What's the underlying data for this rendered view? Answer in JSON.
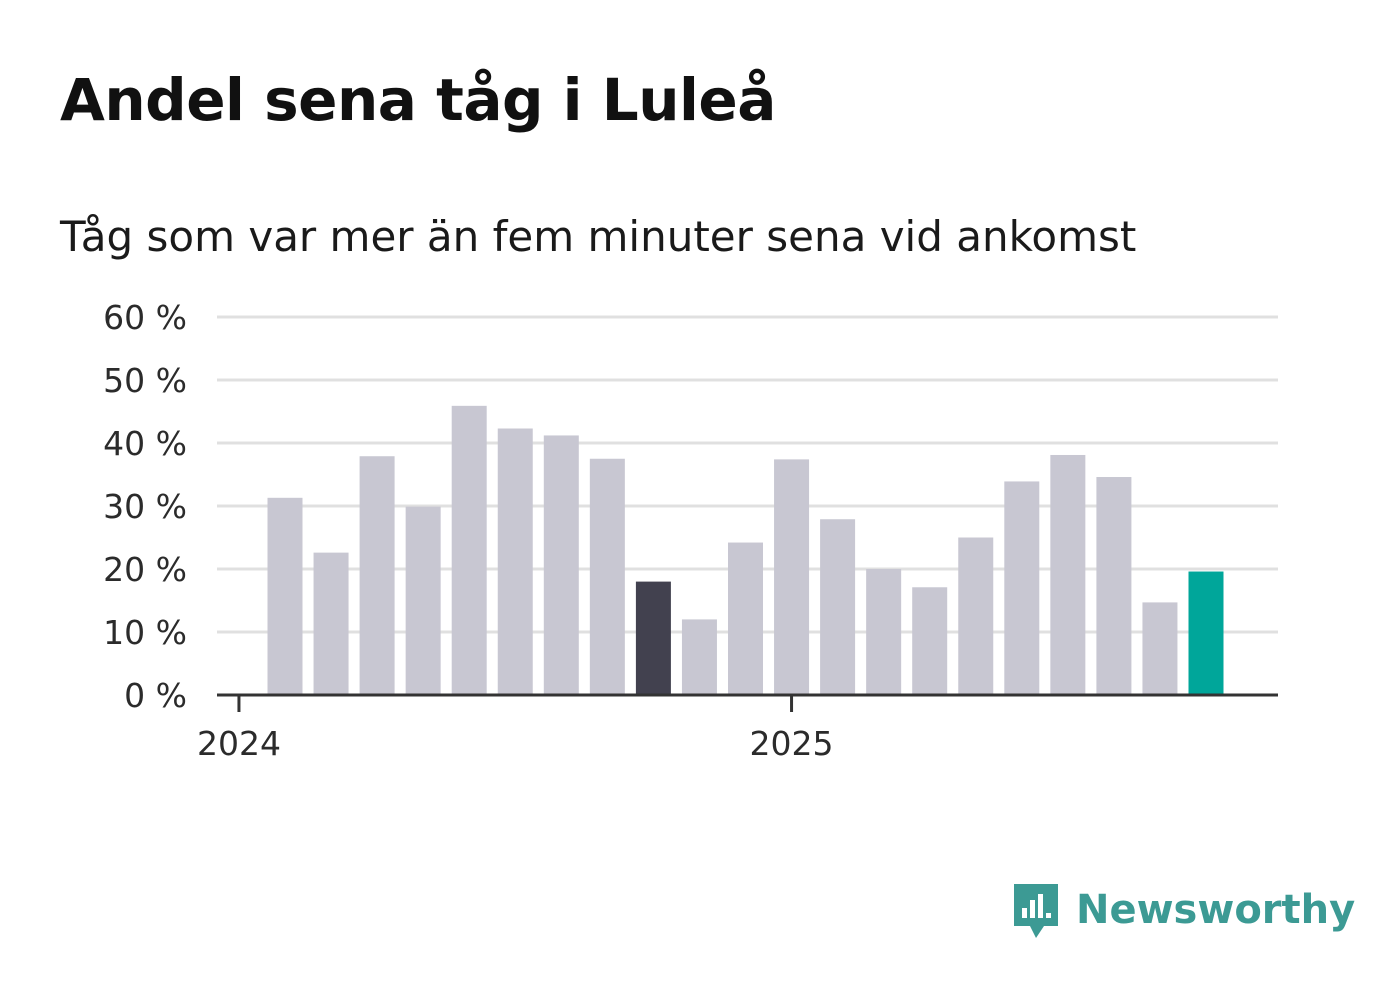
{
  "colors": {
    "bar_default": "#c8c7d2",
    "bar_highlight_dark": "#42414f",
    "bar_highlight_current": "#00a69a",
    "grid": "#e0e0e0",
    "axis": "#333333",
    "brand": "#3c9a94"
  },
  "brand": {
    "name": "Newsworthy",
    "icon": "newsworthy-logo-icon"
  },
  "chart_data": {
    "type": "bar",
    "title": "Andel sena tåg i Luleå",
    "subtitle": "Tåg som var mer än fem minuter sena vid ankomst",
    "xlabel": "",
    "ylabel": "",
    "unit": "%",
    "ylim": [
      0,
      60
    ],
    "yticks": [
      0,
      10,
      20,
      30,
      40,
      50,
      60
    ],
    "ytick_labels": [
      "0 %",
      "10 %",
      "20 %",
      "30 %",
      "40 %",
      "50 %",
      "60 %"
    ],
    "xtick_labels": [
      {
        "label": "2024",
        "month_index": 0
      },
      {
        "label": "2025",
        "month_index": 12
      }
    ],
    "grid": true,
    "values": [
      31.3,
      22.6,
      37.9,
      29.9,
      45.9,
      42.3,
      41.2,
      37.5,
      18.0,
      12.0,
      24.2,
      37.4,
      27.9,
      20.0,
      17.1,
      25.0,
      33.9,
      38.1,
      34.6,
      14.7,
      19.6
    ],
    "highlights": [
      {
        "index": 8,
        "color_key": "bar_highlight_dark"
      },
      {
        "index": 20,
        "color_key": "bar_highlight_current"
      }
    ]
  }
}
